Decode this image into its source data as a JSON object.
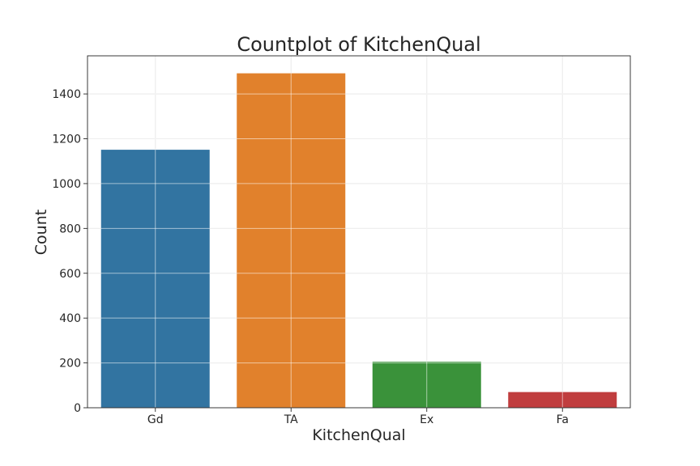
{
  "chart_data": {
    "type": "bar",
    "title": "Countplot of KitchenQual",
    "xlabel": "KitchenQual",
    "ylabel": "Count",
    "categories": [
      "Gd",
      "TA",
      "Ex",
      "Fa"
    ],
    "values": [
      1151,
      1492,
      205,
      70
    ],
    "colors": [
      "#3274a1",
      "#e1812c",
      "#3a923a",
      "#c03d3e"
    ],
    "ylim": [
      0,
      1570
    ],
    "yticks": [
      0,
      200,
      400,
      600,
      800,
      1000,
      1200,
      1400
    ],
    "grid": true,
    "legend": "none"
  }
}
